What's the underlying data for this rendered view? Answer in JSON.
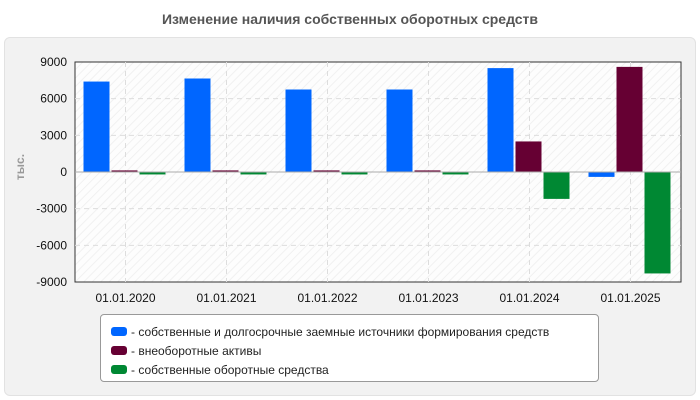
{
  "chart_data": {
    "type": "bar",
    "title": "Изменение наличия собственных оборотных средств",
    "xlabel": "",
    "ylabel": "тыс.",
    "ylim": [
      -9000,
      9000
    ],
    "yticks": [
      "9000",
      "6000",
      "3000",
      "0",
      "-3000",
      "-6000",
      "-9000"
    ],
    "grid": true,
    "legend_position": "bottom",
    "categories": [
      "01.01.2020",
      "01.01.2021",
      "01.01.2022",
      "01.01.2023",
      "01.01.2024",
      "01.01.2025"
    ],
    "series": [
      {
        "name": "- собственные и долгосрочные заемные источники формирования средств",
        "color": "#0066ff",
        "values": [
          7400,
          7650,
          6750,
          6750,
          8500,
          -400
        ]
      },
      {
        "name": "- внеоборотные активы",
        "color": "#660033",
        "values": [
          130,
          130,
          130,
          130,
          2500,
          8600
        ]
      },
      {
        "name": "- собственные оборотные средства",
        "color": "#008833",
        "values": [
          -200,
          -200,
          -200,
          -200,
          -2200,
          -8300
        ]
      }
    ]
  }
}
